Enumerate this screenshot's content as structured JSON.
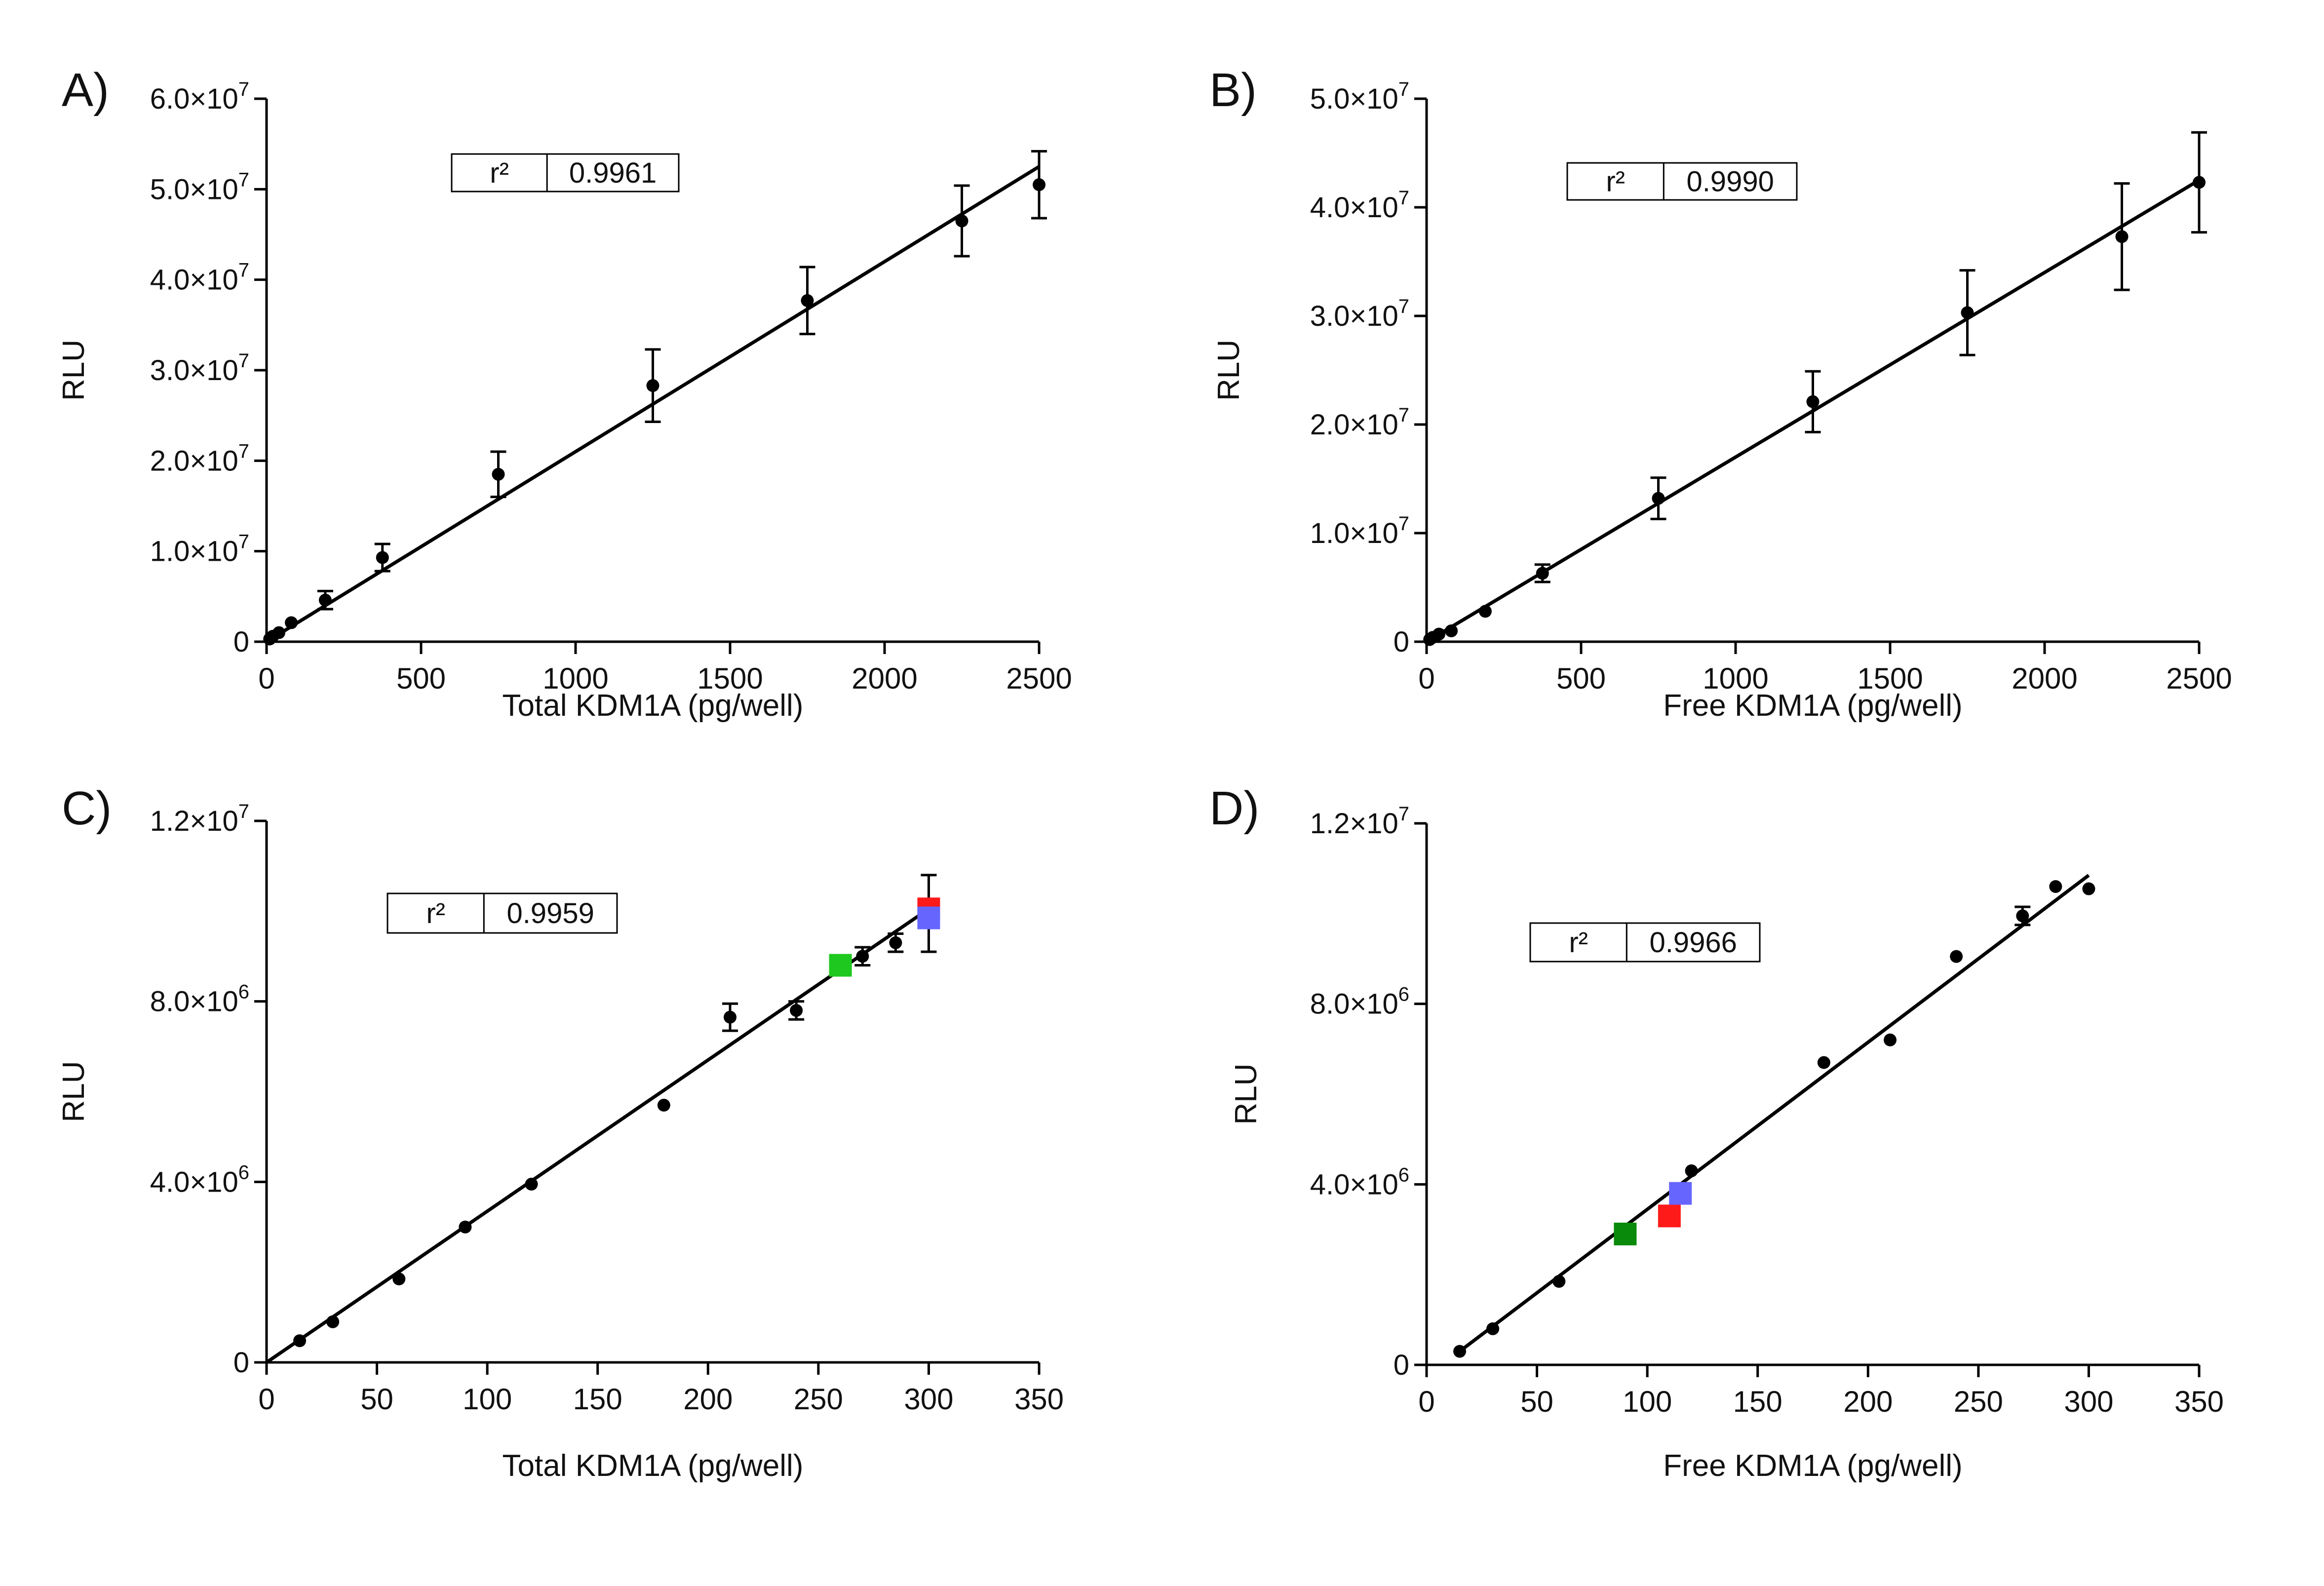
{
  "chart_data": [
    {
      "panel": "A)",
      "type": "scatter",
      "xlabel": "Total KDM1A (pg/well)",
      "ylabel": "RLU",
      "xlim": [
        0,
        2500
      ],
      "ylim": [
        0,
        60000000
      ],
      "xticks": [
        0,
        500,
        1000,
        1500,
        2000,
        2500
      ],
      "xtick_labels": [
        "0",
        "500",
        "1000",
        "1500",
        "2000",
        "2500"
      ],
      "yticks": [
        0,
        10000000,
        20000000,
        30000000,
        40000000,
        50000000,
        60000000
      ],
      "ytick_labels": [
        {
          "m": "0",
          "e": ""
        },
        {
          "m": "1.0×10",
          "e": "7"
        },
        {
          "m": "2.0×10",
          "e": "7"
        },
        {
          "m": "3.0×10",
          "e": "7"
        },
        {
          "m": "4.0×10",
          "e": "7"
        },
        {
          "m": "5.0×10",
          "e": "7"
        },
        {
          "m": "6.0×10",
          "e": "7"
        }
      ],
      "fit": {
        "x": [
          0,
          2500
        ],
        "y": [
          0,
          52500000
        ]
      },
      "points": [
        {
          "x": 10,
          "y": 300000
        },
        {
          "x": 20,
          "y": 600000
        },
        {
          "x": 40,
          "y": 1000000
        },
        {
          "x": 80,
          "y": 2100000
        },
        {
          "x": 190,
          "y": 4600000,
          "err": 1000000
        },
        {
          "x": 375,
          "y": 9300000,
          "err": 1500000
        },
        {
          "x": 750,
          "y": 18500000,
          "err": 2500000
        },
        {
          "x": 1250,
          "y": 28300000,
          "err": 4000000
        },
        {
          "x": 1750,
          "y": 37700000,
          "err": 3700000
        },
        {
          "x": 2250,
          "y": 46500000,
          "err": 3900000
        },
        {
          "x": 2500,
          "y": 50500000,
          "err": 3700000
        }
      ],
      "markers": [],
      "legend": {
        "label": "r²",
        "value": "0.9961",
        "position": "top-left"
      }
    },
    {
      "panel": "B)",
      "type": "scatter",
      "xlabel": "Free KDM1A (pg/well)",
      "ylabel": "RLU",
      "xlim": [
        0,
        2500
      ],
      "ylim": [
        0,
        50000000
      ],
      "xticks": [
        0,
        500,
        1000,
        1500,
        2000,
        2500
      ],
      "xtick_labels": [
        "0",
        "500",
        "1000",
        "1500",
        "2000",
        "2500"
      ],
      "yticks": [
        0,
        10000000,
        20000000,
        30000000,
        40000000,
        50000000
      ],
      "ytick_labels": [
        {
          "m": "0",
          "e": ""
        },
        {
          "m": "1.0×10",
          "e": "7"
        },
        {
          "m": "2.0×10",
          "e": "7"
        },
        {
          "m": "3.0×10",
          "e": "7"
        },
        {
          "m": "4.0×10",
          "e": "7"
        },
        {
          "m": "5.0×10",
          "e": "7"
        }
      ],
      "fit": {
        "x": [
          0,
          2500
        ],
        "y": [
          0,
          42500000
        ]
      },
      "points": [
        {
          "x": 10,
          "y": 200000
        },
        {
          "x": 20,
          "y": 400000
        },
        {
          "x": 40,
          "y": 700000
        },
        {
          "x": 80,
          "y": 1000000
        },
        {
          "x": 190,
          "y": 2800000
        },
        {
          "x": 375,
          "y": 6300000,
          "err": 800000
        },
        {
          "x": 750,
          "y": 13200000,
          "err": 1900000
        },
        {
          "x": 1250,
          "y": 22100000,
          "err": 2800000
        },
        {
          "x": 1750,
          "y": 30300000,
          "err": 3900000
        },
        {
          "x": 2250,
          "y": 37300000,
          "err": 4900000
        },
        {
          "x": 2500,
          "y": 42300000,
          "err": 4600000
        }
      ],
      "markers": [],
      "legend": {
        "label": "r²",
        "value": "0.9990",
        "position": "top-left"
      }
    },
    {
      "panel": "C)",
      "type": "scatter",
      "xlabel": "Total KDM1A (pg/well)",
      "ylabel": "RLU",
      "xlim": [
        0,
        350
      ],
      "ylim": [
        0,
        12000000
      ],
      "xticks": [
        0,
        50,
        100,
        150,
        200,
        250,
        300,
        350
      ],
      "xtick_labels": [
        "0",
        "50",
        "100",
        "150",
        "200",
        "250",
        "300",
        "350"
      ],
      "yticks": [
        0,
        4000000,
        8000000,
        12000000
      ],
      "ytick_labels": [
        {
          "m": "0",
          "e": ""
        },
        {
          "m": "4.0×10",
          "e": "6"
        },
        {
          "m": "8.0×10",
          "e": "6"
        },
        {
          "m": "1.2×10",
          "e": "7"
        }
      ],
      "fit": {
        "x": [
          0,
          300
        ],
        "y": [
          0,
          10050000
        ]
      },
      "points": [
        {
          "x": 15,
          "y": 480000
        },
        {
          "x": 30,
          "y": 900000
        },
        {
          "x": 60,
          "y": 1850000
        },
        {
          "x": 90,
          "y": 3000000
        },
        {
          "x": 120,
          "y": 3950000
        },
        {
          "x": 180,
          "y": 5700000
        },
        {
          "x": 210,
          "y": 7650000,
          "err": 300000
        },
        {
          "x": 240,
          "y": 7800000,
          "err": 200000
        },
        {
          "x": 270,
          "y": 9000000,
          "err": 200000
        },
        {
          "x": 285,
          "y": 9300000,
          "err": 200000
        },
        {
          "x": 300,
          "y": 9950000,
          "err": 850000
        }
      ],
      "markers": [
        {
          "x": 260,
          "y": 8800000,
          "color": "#1fc81f"
        },
        {
          "x": 300,
          "y": 10050000,
          "color": "#ff1a1a"
        },
        {
          "x": 300,
          "y": 9850000,
          "color": "#6666ff"
        }
      ],
      "legend": {
        "label": "r²",
        "value": "0.9959",
        "position": "top-left"
      }
    },
    {
      "panel": "D)",
      "type": "scatter",
      "xlabel": "Free KDM1A (pg/well)",
      "ylabel": "RLU",
      "xlim": [
        0,
        350
      ],
      "ylim": [
        0,
        12000000
      ],
      "xticks": [
        0,
        50,
        100,
        150,
        200,
        250,
        300,
        350
      ],
      "xtick_labels": [
        "0",
        "50",
        "100",
        "150",
        "200",
        "250",
        "300",
        "350"
      ],
      "yticks": [
        0,
        4000000,
        8000000,
        12000000
      ],
      "ytick_labels": [
        {
          "m": "0",
          "e": ""
        },
        {
          "m": "4.0×10",
          "e": "6"
        },
        {
          "m": "8.0×10",
          "e": "6"
        },
        {
          "m": "1.2×10",
          "e": "7"
        }
      ],
      "fit": {
        "x": [
          15,
          300
        ],
        "y": [
          300000,
          10850000
        ]
      },
      "points": [
        {
          "x": 15,
          "y": 300000
        },
        {
          "x": 30,
          "y": 800000
        },
        {
          "x": 60,
          "y": 1850000
        },
        {
          "x": 120,
          "y": 4300000
        },
        {
          "x": 180,
          "y": 6700000
        },
        {
          "x": 210,
          "y": 7200000
        },
        {
          "x": 240,
          "y": 9050000
        },
        {
          "x": 270,
          "y": 9950000,
          "err": 200000
        },
        {
          "x": 285,
          "y": 10600000
        },
        {
          "x": 300,
          "y": 10550000
        }
      ],
      "markers": [
        {
          "x": 90,
          "y": 2900000,
          "color": "#0a8a0a"
        },
        {
          "x": 110,
          "y": 3300000,
          "color": "#ff1a1a"
        },
        {
          "x": 115,
          "y": 3800000,
          "color": "#6666ff"
        }
      ],
      "legend": {
        "label": "r²",
        "value": "0.9966",
        "position": "top-left"
      }
    }
  ]
}
